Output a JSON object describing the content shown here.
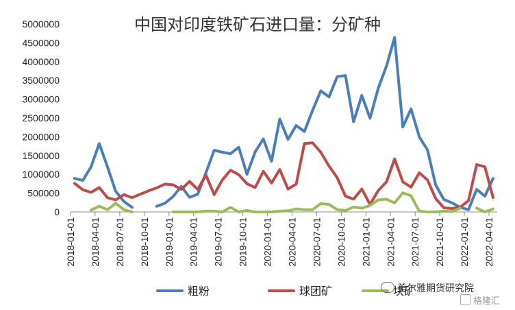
{
  "chart_data": {
    "type": "line",
    "title": "中国对印度铁矿石进口量：分矿种",
    "x_ticks": [
      "2018-01-01",
      "2018-04-01",
      "2018-07-01",
      "2018-10-01",
      "2019-01-01",
      "2019-04-01",
      "2019-07-01",
      "2019-10-01",
      "2020-01-01",
      "2020-04-01",
      "2020-07-01",
      "2020-10-01",
      "2021-01-01",
      "2021-04-01",
      "2021-07-01",
      "2021-10-01",
      "2022-01-01",
      "2022-04-01"
    ],
    "x_months": [
      "2018-01",
      "2018-02",
      "2018-03",
      "2018-04",
      "2018-05",
      "2018-06",
      "2018-07",
      "2018-08",
      "2018-09",
      "2018-10",
      "2018-11",
      "2018-12",
      "2019-01",
      "2019-02",
      "2019-03",
      "2019-04",
      "2019-05",
      "2019-06",
      "2019-07",
      "2019-08",
      "2019-09",
      "2019-10",
      "2019-11",
      "2019-12",
      "2020-01",
      "2020-02",
      "2020-03",
      "2020-04",
      "2020-05",
      "2020-06",
      "2020-07",
      "2020-08",
      "2020-09",
      "2020-10",
      "2020-11",
      "2020-12",
      "2021-01",
      "2021-02",
      "2021-03",
      "2021-04",
      "2021-05",
      "2021-06",
      "2021-07",
      "2021-08",
      "2021-09",
      "2021-10",
      "2021-11",
      "2021-12",
      "2022-01",
      "2022-02",
      "2022-03",
      "2022-04"
    ],
    "ylim": [
      0,
      5000000
    ],
    "y_ticks": [
      0,
      500000,
      1000000,
      1500000,
      2000000,
      2500000,
      3000000,
      3500000,
      4000000,
      4500000,
      5000000
    ],
    "legend_position": "bottom",
    "series": [
      {
        "name": "粗粉",
        "color": "#4a7ebb",
        "values": [
          890000,
          840000,
          1200000,
          1820000,
          1200000,
          550000,
          280000,
          120000,
          null,
          null,
          150000,
          230000,
          410000,
          680000,
          390000,
          470000,
          1040000,
          1640000,
          1590000,
          1550000,
          1720000,
          1000000,
          1600000,
          1940000,
          1350000,
          2470000,
          1930000,
          2300000,
          2140000,
          2700000,
          3220000,
          3060000,
          3600000,
          3630000,
          2400000,
          3100000,
          2490000,
          3290000,
          3880000,
          4640000,
          2260000,
          2740000,
          2000000,
          1650000,
          720000,
          330000,
          240000,
          120000,
          60000,
          600000,
          420000,
          890000
        ]
      },
      {
        "name": "球团矿",
        "color": "#be4b48",
        "values": [
          760000,
          590000,
          520000,
          650000,
          380000,
          320000,
          460000,
          380000,
          470000,
          560000,
          640000,
          740000,
          720000,
          600000,
          810000,
          600000,
          980000,
          460000,
          850000,
          1110000,
          990000,
          750000,
          650000,
          1080000,
          770000,
          1130000,
          610000,
          740000,
          1820000,
          1840000,
          1590000,
          1220000,
          910000,
          420000,
          340000,
          610000,
          200000,
          570000,
          800000,
          1410000,
          800000,
          660000,
          1040000,
          850000,
          360000,
          110000,
          90000,
          130000,
          300000,
          1260000,
          1200000,
          380000
        ]
      },
      {
        "name": "块矿",
        "color": "#9bbb59",
        "values": [
          null,
          null,
          50000,
          150000,
          60000,
          230000,
          60000,
          0,
          null,
          null,
          null,
          null,
          0,
          0,
          0,
          0,
          20000,
          20000,
          0,
          120000,
          0,
          40000,
          0,
          0,
          0,
          20000,
          30000,
          80000,
          60000,
          60000,
          220000,
          200000,
          60000,
          40000,
          130000,
          100000,
          170000,
          320000,
          340000,
          240000,
          510000,
          430000,
          20000,
          0,
          0,
          20000,
          10000,
          100000,
          null,
          100000,
          0,
          80000
        ]
      }
    ]
  },
  "watermark": {
    "text": "美尔雅期货研究院",
    "corner": "格隆汇"
  }
}
